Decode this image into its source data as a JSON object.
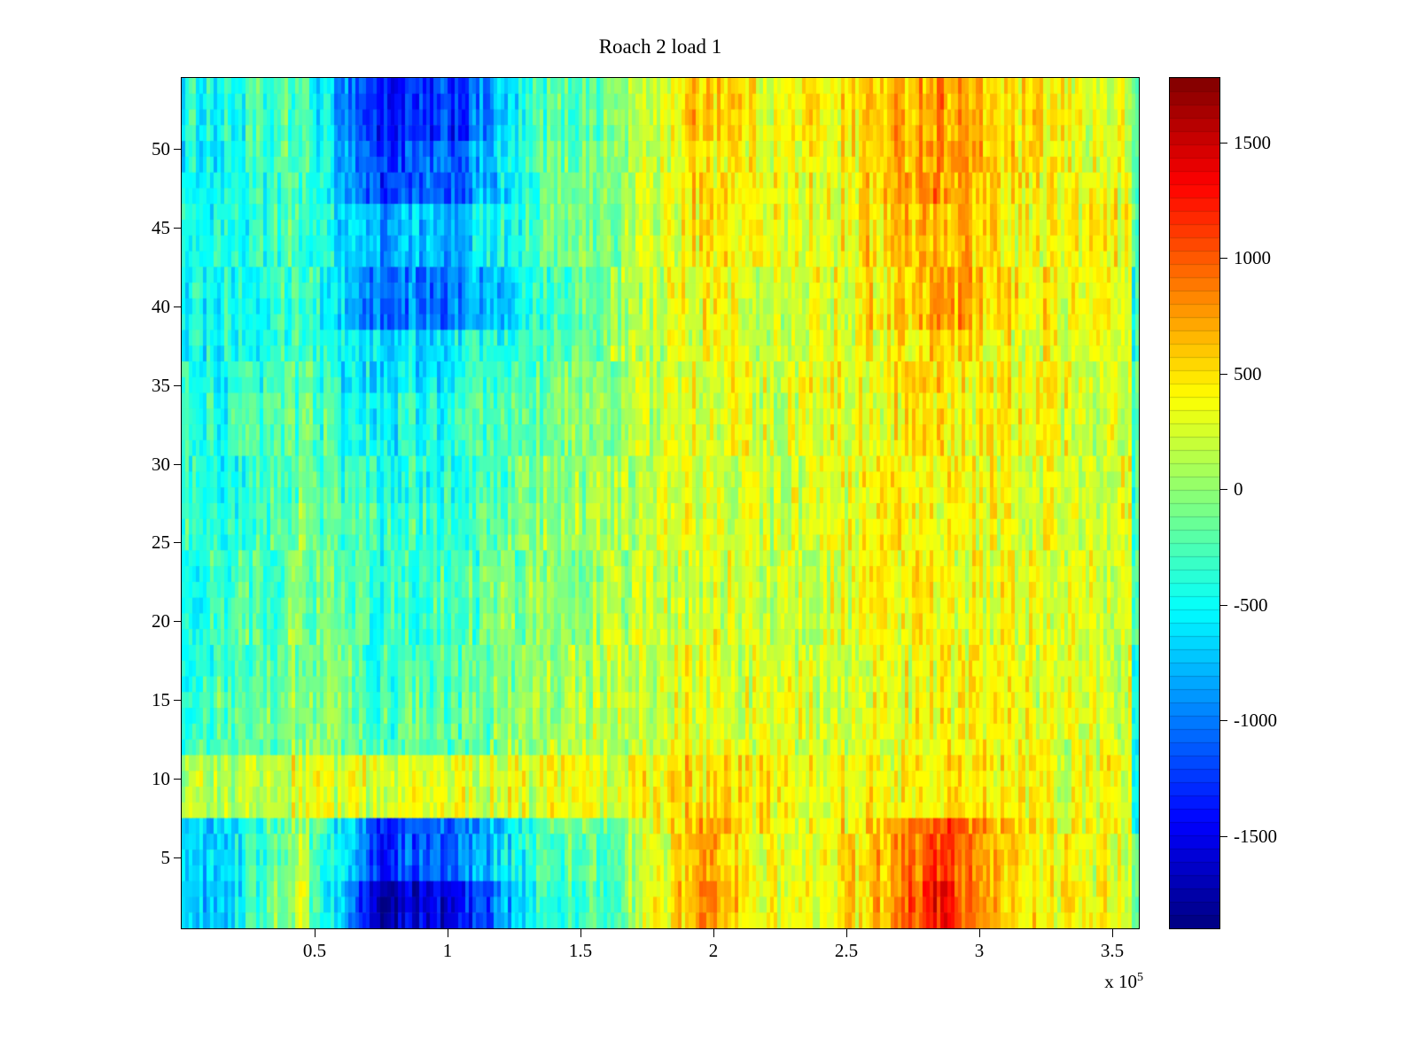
{
  "figure": {
    "background": "#ffffff"
  },
  "chart_data": {
    "type": "heatmap",
    "title": "Roach 2 load 1",
    "xlabel": "",
    "ylabel": "",
    "x_range": [
      0,
      3.6
    ],
    "x_unit_exponent_prefix": "x 10",
    "x_unit_exponent": "5",
    "x_ticks": [
      "0.5",
      "1",
      "1.5",
      "2",
      "2.5",
      "3",
      "3.5"
    ],
    "x_tick_values": [
      0.5,
      1,
      1.5,
      2,
      2.5,
      3,
      3.5
    ],
    "y_range": [
      0.5,
      54.5
    ],
    "y_ticks": [
      "5",
      "10",
      "15",
      "20",
      "25",
      "30",
      "35",
      "40",
      "45",
      "50"
    ],
    "y_tick_values": [
      5,
      10,
      15,
      20,
      25,
      30,
      35,
      40,
      45,
      50
    ],
    "value_range": [
      -1900,
      1780
    ],
    "colormap": "jet",
    "colorbar_ticks": [
      "1500",
      "1000",
      "500",
      "0",
      "-500",
      "-1000",
      "-1500"
    ],
    "colorbar_tick_values": [
      1500,
      1000,
      500,
      0,
      -500,
      -1000,
      -1500
    ],
    "colorbar_segments": 64,
    "grid_rows": 54,
    "grid_cols": 270,
    "noise": {
      "seed": 1234,
      "bands": 9,
      "column_band_amp": 230,
      "cell_amp": 155
    },
    "right_edge": {
      "cols": 2,
      "offset": -650
    },
    "base_grid_orientation": "rows top-to-bottom (y max to y min), columns left-to-right (x 0 to 3.6e5)",
    "base_grid": [
      [
        -450,
        -250,
        -1450,
        -1250,
        -300,
        -50,
        650,
        350,
        500,
        800,
        450,
        300
      ],
      [
        -500,
        -200,
        -1250,
        -1050,
        -250,
        0,
        500,
        300,
        450,
        850,
        450,
        300
      ],
      [
        -450,
        -250,
        -850,
        -700,
        -200,
        0,
        450,
        300,
        450,
        700,
        400,
        350
      ],
      [
        -450,
        -200,
        -1050,
        -950,
        -300,
        0,
        400,
        250,
        400,
        800,
        450,
        300
      ],
      [
        -450,
        -250,
        -650,
        -500,
        -200,
        50,
        350,
        250,
        400,
        550,
        350,
        300
      ],
      [
        -400,
        -200,
        -500,
        -400,
        -150,
        50,
        350,
        200,
        350,
        450,
        350,
        250
      ],
      [
        -400,
        -150,
        -450,
        -350,
        -100,
        100,
        300,
        200,
        300,
        400,
        300,
        250
      ],
      [
        -350,
        -100,
        -350,
        -300,
        -50,
        100,
        300,
        200,
        300,
        350,
        300,
        250
      ],
      [
        -350,
        -100,
        -300,
        -250,
        0,
        100,
        250,
        200,
        300,
        350,
        300,
        250
      ],
      [
        -300,
        -50,
        -300,
        -250,
        0,
        150,
        300,
        200,
        300,
        350,
        300,
        250
      ],
      [
        -250,
        0,
        -250,
        -200,
        50,
        150,
        300,
        250,
        300,
        350,
        300,
        250
      ],
      [
        150,
        300,
        250,
        300,
        250,
        350,
        500,
        350,
        400,
        450,
        350,
        300
      ],
      [
        -650,
        50,
        -1250,
        -1000,
        -300,
        -50,
        700,
        300,
        500,
        1100,
        450,
        300
      ],
      [
        -700,
        150,
        -1700,
        -1450,
        -400,
        -100,
        800,
        300,
        450,
        1250,
        450,
        350
      ]
    ]
  }
}
